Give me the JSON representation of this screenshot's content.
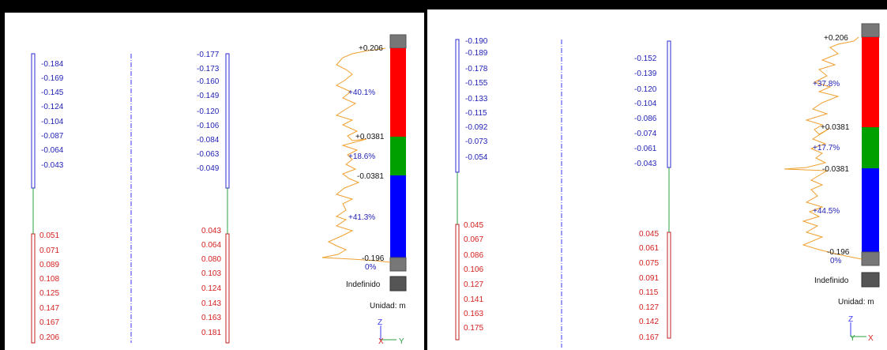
{
  "colors": {
    "negative": "#1f1fb4",
    "positive": "#d42020",
    "scale_gray": "#777777",
    "scale_red": "#ff0000",
    "scale_green": "#00a000",
    "scale_blue": "#0000ff",
    "histogram": "#f0a030",
    "undefined_swatch": "#555555",
    "axis_dashdot": "#3a3af0"
  },
  "panels": [
    {
      "id": "left",
      "col1": {
        "neg_labels": [
          "-0.184",
          "-0.169",
          "-0.145",
          "-0.124",
          "-0.104",
          "-0.087",
          "-0.064",
          "-0.043"
        ],
        "pos_labels": [
          "0.051",
          "0.071",
          "0.089",
          "0.108",
          "0.125",
          "0.147",
          "0.167",
          "0.206"
        ]
      },
      "col2": {
        "neg_labels": [
          "-0.177",
          "-0.173",
          "-0.160",
          "-0.149",
          "-0.120",
          "-0.106",
          "-0.084",
          "-0.063",
          "-0.049"
        ],
        "pos_labels": [
          "0.043",
          "0.064",
          "0.080",
          "0.103",
          "0.124",
          "0.143",
          "0.163",
          "0.181"
        ]
      },
      "scale": {
        "top_value": "+0.206",
        "upper_value": "+0.0381",
        "lower_value": "-0.0381",
        "bottom_value": "-0.196",
        "pct_red": "+40.1%",
        "pct_green": "+18.6%",
        "pct_blue": "+41.3%",
        "pct_bottom": "0%"
      },
      "undefined_label": "Indefinido",
      "unit_label": "Unidad: m",
      "axes": {
        "z": "Z",
        "x": "X",
        "y": "Y"
      }
    },
    {
      "id": "right",
      "col1": {
        "neg_labels": [
          "-0.190",
          "-0.189",
          "-0.178",
          "-0.155",
          "-0.133",
          "-0.115",
          "-0.092",
          "-0.073",
          "-0.054"
        ],
        "pos_labels": [
          "0.045",
          "0.067",
          "0.086",
          "0.106",
          "0.127",
          "0.141",
          "0.163",
          "0.175"
        ]
      },
      "col2": {
        "neg_labels": [
          "-0.152",
          "-0.139",
          "-0.120",
          "-0.104",
          "-0.086",
          "-0.074",
          "-0.061",
          "-0.043"
        ],
        "pos_labels": [
          "0.045",
          "0.061",
          "0.075",
          "0.091",
          "0.115",
          "0.127",
          "0.142",
          "0.167"
        ]
      },
      "scale": {
        "top_value": "+0.206",
        "upper_value": "+0.0381",
        "lower_value": "-0.0381",
        "bottom_value": "-0.196",
        "pct_red": "+37.8%",
        "pct_green": "+17.7%",
        "pct_blue": "+44.5%",
        "pct_bottom": "0%"
      },
      "undefined_label": "Indefinido",
      "unit_label": "Unidad: m",
      "axes": {
        "z": "Z",
        "x": "X",
        "y": "Y"
      }
    }
  ]
}
